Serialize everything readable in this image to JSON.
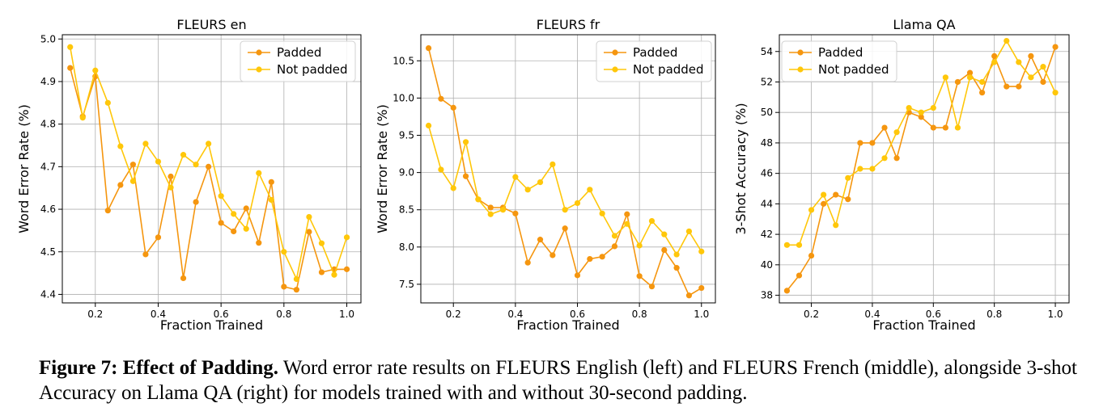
{
  "colors": {
    "padded": "#F5960F",
    "not_padded": "#FFC70A",
    "grid": "#b0b0b0",
    "axis": "#000000"
  },
  "chart_data": [
    {
      "type": "line",
      "title": "FLEURS en",
      "xlabel": "Fraction Trained",
      "ylabel": "Word Error Rate (%)",
      "xlim": [
        0.095,
        1.045
      ],
      "ylim": [
        4.38,
        5.01
      ],
      "xticks": [
        "0.2",
        "0.4",
        "0.6",
        "0.8",
        "1.0"
      ],
      "xtick_values": [
        0.2,
        0.4,
        0.6,
        0.8,
        1.0
      ],
      "yticks": [
        "4.4",
        "4.5",
        "4.6",
        "4.7",
        "4.8",
        "4.9",
        "5.0"
      ],
      "ytick_values": [
        4.4,
        4.5,
        4.6,
        4.7,
        4.8,
        4.9,
        5.0
      ],
      "grid": true,
      "legend_position": "top-right",
      "x": [
        0.12,
        0.16,
        0.2,
        0.24,
        0.28,
        0.32,
        0.36,
        0.4,
        0.44,
        0.48,
        0.52,
        0.56,
        0.6,
        0.64,
        0.68,
        0.72,
        0.76,
        0.8,
        0.84,
        0.88,
        0.92,
        0.96,
        1.0
      ],
      "series": [
        {
          "name": "Padded",
          "values": [
            4.932,
            4.818,
            4.912,
            4.597,
            4.657,
            4.705,
            4.494,
            4.534,
            4.677,
            4.438,
            4.617,
            4.7,
            4.568,
            4.548,
            4.602,
            4.521,
            4.664,
            4.418,
            4.411,
            4.547,
            4.452,
            4.459,
            4.459
          ]
        },
        {
          "name": "Not padded",
          "values": [
            4.981,
            4.815,
            4.926,
            4.85,
            4.748,
            4.666,
            4.754,
            4.712,
            4.651,
            4.728,
            4.705,
            4.754,
            4.631,
            4.589,
            4.554,
            4.685,
            4.622,
            4.5,
            4.436,
            4.582,
            4.52,
            4.446,
            4.534
          ]
        }
      ]
    },
    {
      "type": "line",
      "title": "FLEURS fr",
      "xlabel": "Fraction Trained",
      "ylabel": "Word Error Rate (%)",
      "xlim": [
        0.095,
        1.045
      ],
      "ylim": [
        7.25,
        10.85
      ],
      "xticks": [
        "0.2",
        "0.4",
        "0.6",
        "0.8",
        "1.0"
      ],
      "xtick_values": [
        0.2,
        0.4,
        0.6,
        0.8,
        1.0
      ],
      "yticks": [
        "7.5",
        "8.0",
        "8.5",
        "9.0",
        "9.5",
        "10.0",
        "10.5"
      ],
      "ytick_values": [
        7.5,
        8.0,
        8.5,
        9.0,
        9.5,
        10.0,
        10.5
      ],
      "grid": true,
      "legend_position": "top-right",
      "x": [
        0.12,
        0.16,
        0.2,
        0.24,
        0.28,
        0.32,
        0.36,
        0.4,
        0.44,
        0.48,
        0.52,
        0.56,
        0.6,
        0.64,
        0.68,
        0.72,
        0.76,
        0.8,
        0.84,
        0.88,
        0.92,
        0.96,
        1.0
      ],
      "series": [
        {
          "name": "Padded",
          "values": [
            10.67,
            9.99,
            9.87,
            8.95,
            8.64,
            8.53,
            8.53,
            8.45,
            7.79,
            8.1,
            7.89,
            8.25,
            7.62,
            7.84,
            7.87,
            8.01,
            8.44,
            7.61,
            7.47,
            7.96,
            7.72,
            7.35,
            7.45
          ]
        },
        {
          "name": "Not padded",
          "values": [
            9.63,
            9.04,
            8.79,
            9.41,
            8.64,
            8.44,
            8.5,
            8.94,
            8.77,
            8.87,
            9.11,
            8.5,
            8.59,
            8.77,
            8.45,
            8.15,
            8.31,
            8.02,
            8.35,
            8.17,
            7.9,
            8.21,
            7.94
          ]
        }
      ]
    },
    {
      "type": "line",
      "title": "Llama QA",
      "xlabel": "Fraction Trained",
      "ylabel": "3-Shot Accuracy (%)",
      "xlim": [
        0.095,
        1.045
      ],
      "ylim": [
        37.5,
        55.1
      ],
      "xticks": [
        "0.2",
        "0.4",
        "0.6",
        "0.8",
        "1.0"
      ],
      "xtick_values": [
        0.2,
        0.4,
        0.6,
        0.8,
        1.0
      ],
      "yticks": [
        "38",
        "40",
        "42",
        "44",
        "46",
        "48",
        "50",
        "52",
        "54"
      ],
      "ytick_values": [
        38,
        40,
        42,
        44,
        46,
        48,
        50,
        52,
        54
      ],
      "grid": true,
      "legend_position": "top-left",
      "x": [
        0.12,
        0.16,
        0.2,
        0.24,
        0.28,
        0.32,
        0.36,
        0.4,
        0.44,
        0.48,
        0.52,
        0.56,
        0.6,
        0.64,
        0.68,
        0.72,
        0.76,
        0.8,
        0.84,
        0.88,
        0.92,
        0.96,
        1.0
      ],
      "series": [
        {
          "name": "Padded",
          "values": [
            38.3,
            39.3,
            40.6,
            44.0,
            44.6,
            44.3,
            48.0,
            48.0,
            49.0,
            47.0,
            50.0,
            49.7,
            49.0,
            49.0,
            52.0,
            52.6,
            51.3,
            53.7,
            51.7,
            51.7,
            53.7,
            52.0,
            54.3
          ]
        },
        {
          "name": "Not padded",
          "values": [
            41.3,
            41.3,
            43.6,
            44.6,
            42.6,
            45.7,
            46.3,
            46.3,
            47.0,
            48.7,
            50.3,
            50.0,
            50.3,
            52.3,
            49.0,
            52.3,
            52.0,
            53.3,
            54.7,
            53.3,
            52.3,
            53.0,
            51.3
          ]
        }
      ]
    }
  ],
  "caption": {
    "label": "Figure 7: Effect of Padding.",
    "text": " Word error rate results on FLEURS English (left) and FLEURS French (middle), alongside 3-shot Accuracy on Llama QA (right) for models trained with and without 30-second padding."
  }
}
